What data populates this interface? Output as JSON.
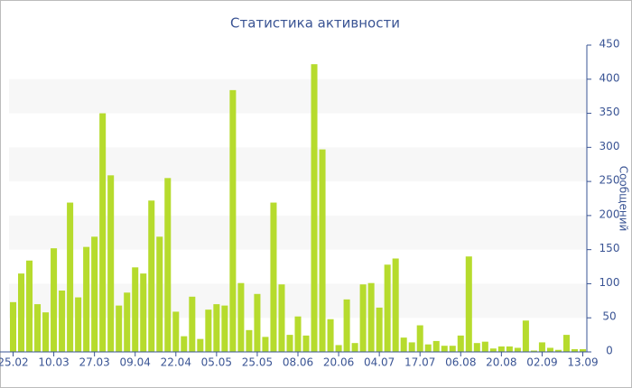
{
  "chart_data": {
    "type": "bar",
    "title": "Статистика активности",
    "y_axis_label": "Сообщений",
    "y_axis_side": "right",
    "categories": [
      "25.02",
      null,
      null,
      null,
      null,
      "10.03",
      null,
      null,
      null,
      null,
      "27.03",
      null,
      null,
      null,
      null,
      "09.04",
      null,
      null,
      null,
      null,
      "22.04",
      null,
      null,
      null,
      null,
      "05.05",
      null,
      null,
      null,
      null,
      "25.05",
      null,
      null,
      null,
      null,
      "08.06",
      null,
      null,
      null,
      null,
      "20.06",
      null,
      null,
      null,
      null,
      "04.07",
      null,
      null,
      null,
      null,
      "17.07",
      null,
      null,
      null,
      null,
      "06.08",
      null,
      null,
      null,
      null,
      "20.08",
      null,
      null,
      null,
      null,
      "02.09",
      null,
      null,
      null,
      null,
      "13.09"
    ],
    "values": [
      73,
      115,
      134,
      70,
      58,
      152,
      90,
      219,
      80,
      154,
      169,
      350,
      259,
      68,
      87,
      124,
      115,
      222,
      169,
      255,
      59,
      23,
      81,
      19,
      62,
      70,
      68,
      384,
      101,
      32,
      85,
      22,
      219,
      99,
      25,
      52,
      24,
      422,
      297,
      48,
      10,
      77,
      13,
      99,
      101,
      65,
      128,
      137,
      21,
      14,
      39,
      11,
      16,
      9,
      9,
      24,
      140,
      13,
      15,
      5,
      8,
      8,
      6,
      46,
      2,
      14,
      6,
      3,
      25,
      4,
      4
    ],
    "color": "#b6db2d",
    "ylim": [
      0,
      450
    ],
    "yticks": [
      0,
      50,
      100,
      150,
      200,
      250,
      300,
      350,
      400,
      450
    ],
    "grid": true
  }
}
